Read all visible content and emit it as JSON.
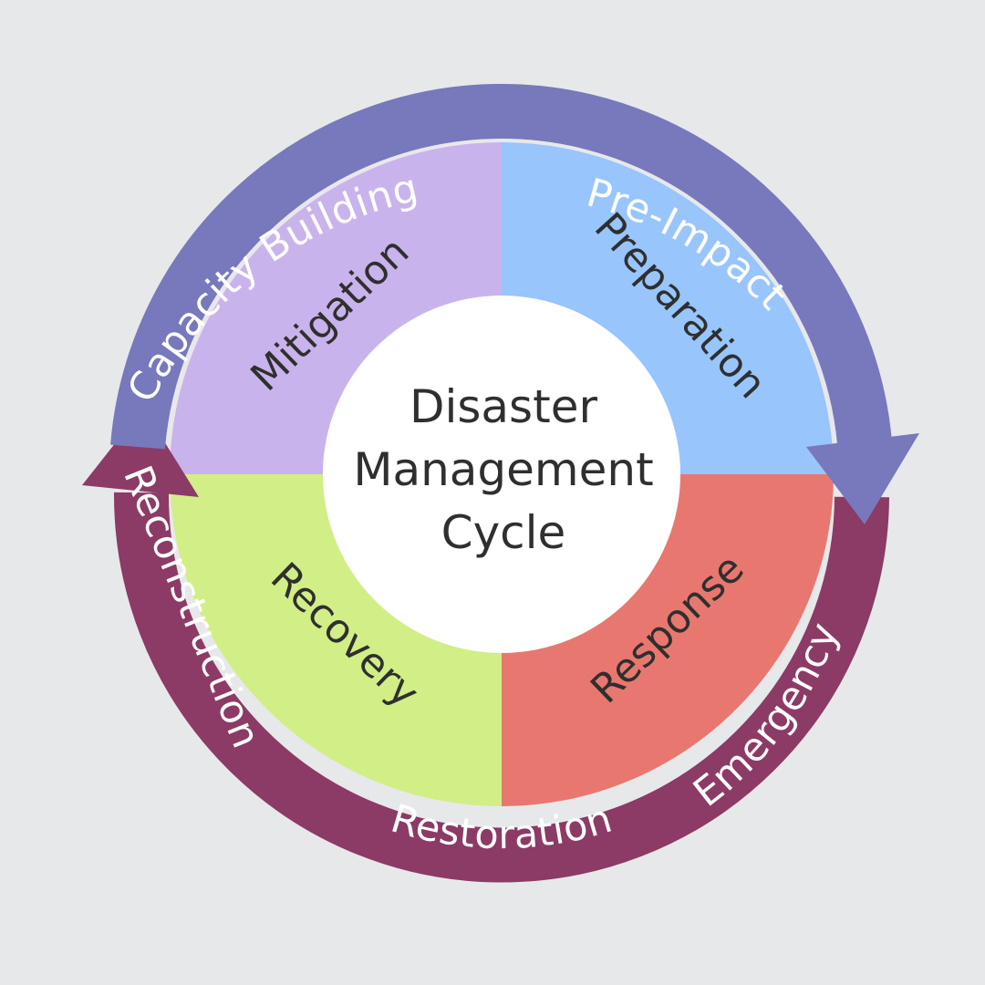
{
  "diagram": {
    "center_label_lines": [
      "Disaster",
      "Management",
      "Cycle"
    ],
    "phases": [
      {
        "id": "mitigation",
        "label": "Mitigation",
        "color": "#c9b3ec"
      },
      {
        "id": "preparation",
        "label": "Preparation",
        "color": "#98c5fb"
      },
      {
        "id": "response",
        "label": "Response",
        "color": "#e8786f"
      },
      {
        "id": "recovery",
        "label": "Recovery",
        "color": "#d2ee86"
      }
    ],
    "outer_ring": {
      "upper_arc": {
        "color": "#7878bc",
        "labels": {
          "capacity_building": "Capacity Building",
          "pre_impact": "Pre-Impact"
        }
      },
      "lower_arc": {
        "color": "#8c3a66",
        "labels": {
          "emergency": "Emergency",
          "restoration": "Restoration",
          "reconstruction": "Reconstruction"
        }
      }
    }
  }
}
